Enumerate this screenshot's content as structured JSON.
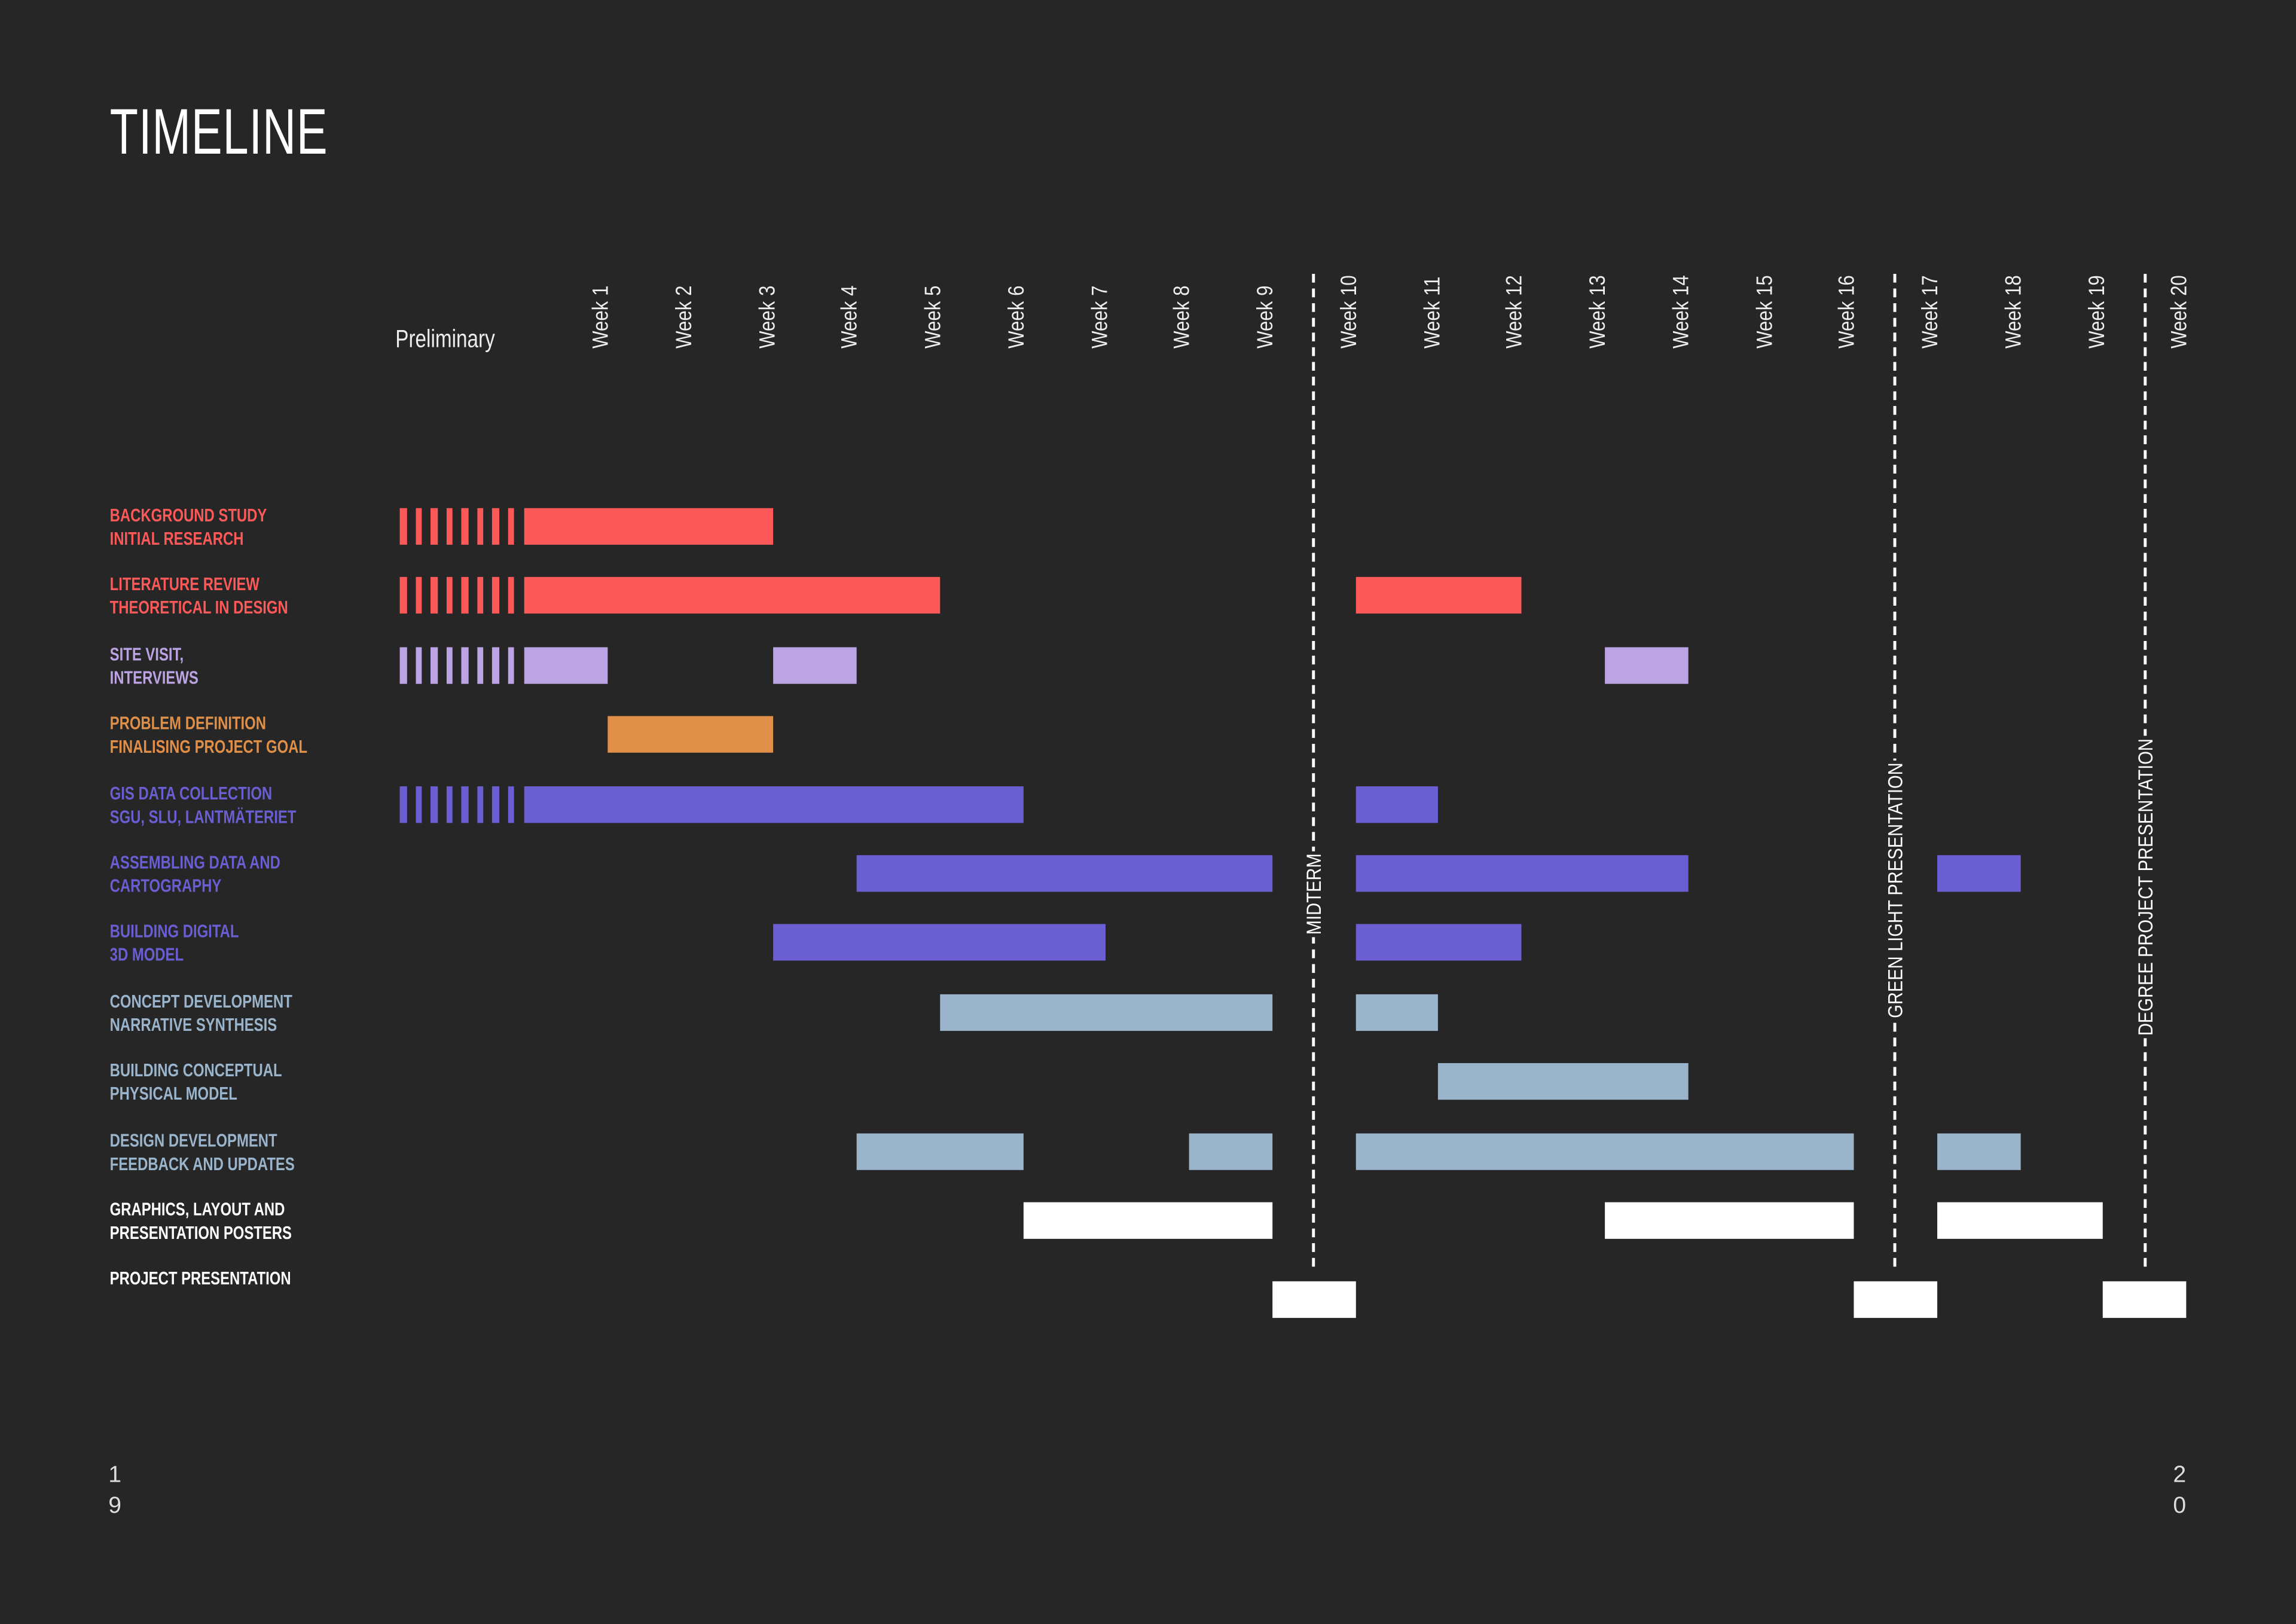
{
  "title": "TIMELINE",
  "preliminary_label": "Preliminary",
  "page_numbers": {
    "left": [
      "1",
      "9"
    ],
    "right": [
      "2",
      "0"
    ]
  },
  "colors": {
    "background": "#262626",
    "red": "#fd5959",
    "lavender": "#bca4e4",
    "orange": "#e08f48",
    "purple": "#6a5ed2",
    "blue": "#9ab4cc",
    "white": "#ffffff"
  },
  "chart_data": {
    "type": "gantt",
    "title": "TIMELINE",
    "x_unit": "week slot (0 = start of Week 1; slot 9-10 = midterm)",
    "weeks": [
      "Week 1",
      "Week 2",
      "Week 3",
      "Week 4",
      "Week 5",
      "Week 6",
      "Week 7",
      "Week 8",
      "Week 9",
      "Week 10",
      "Week 11",
      "Week 12",
      "Week 13",
      "Week 14",
      "Week 15",
      "Week 16",
      "Week 17",
      "Week 18",
      "Week 19",
      "Week 20"
    ],
    "tasks": [
      {
        "lines": [
          "BACKGROUND STUDY",
          "INITIAL RESEARCH"
        ],
        "color": "#fd5959",
        "preliminary": true,
        "segments": [
          [
            0,
            3
          ]
        ]
      },
      {
        "lines": [
          "LITERATURE REVIEW",
          "THEORETICAL IN DESIGN"
        ],
        "color": "#fd5959",
        "preliminary": true,
        "segments": [
          [
            0,
            5
          ],
          [
            10,
            12
          ]
        ]
      },
      {
        "lines": [
          "SITE VISIT,",
          "INTERVIEWS"
        ],
        "color": "#bca4e4",
        "preliminary": true,
        "segments": [
          [
            0,
            1
          ],
          [
            3,
            4
          ],
          [
            13,
            14
          ]
        ]
      },
      {
        "lines": [
          "PROBLEM DEFINITION",
          "FINALISING PROJECT GOAL"
        ],
        "color": "#e08f48",
        "preliminary": false,
        "segments": [
          [
            1,
            3
          ]
        ]
      },
      {
        "lines": [
          "GIS DATA COLLECTION",
          "SGU, SLU, LANTMÄTERIET"
        ],
        "color": "#6a5ed2",
        "preliminary": true,
        "segments": [
          [
            0,
            6
          ],
          [
            10,
            11
          ]
        ]
      },
      {
        "lines": [
          "ASSEMBLING DATA AND",
          "CARTOGRAPHY"
        ],
        "color": "#6a5ed2",
        "preliminary": false,
        "segments": [
          [
            4,
            9
          ],
          [
            10,
            14
          ],
          [
            17,
            18
          ]
        ]
      },
      {
        "lines": [
          "BUILDING DIGITAL",
          "3D MODEL"
        ],
        "color": "#6a5ed2",
        "preliminary": false,
        "segments": [
          [
            3,
            7
          ],
          [
            10,
            12
          ]
        ]
      },
      {
        "lines": [
          "CONCEPT DEVELOPMENT",
          "NARRATIVE SYNTHESIS"
        ],
        "color": "#9ab4cc",
        "preliminary": false,
        "segments": [
          [
            5,
            9
          ],
          [
            10,
            11
          ]
        ]
      },
      {
        "lines": [
          "BUILDING CONCEPTUAL",
          "PHYSICAL MODEL"
        ],
        "color": "#9ab4cc",
        "preliminary": false,
        "segments": [
          [
            11,
            14
          ]
        ]
      },
      {
        "lines": [
          "DESIGN DEVELOPMENT",
          "FEEDBACK AND UPDATES"
        ],
        "color": "#9ab4cc",
        "preliminary": false,
        "segments": [
          [
            4,
            6
          ],
          [
            8,
            9
          ],
          [
            10,
            16
          ],
          [
            17,
            18
          ]
        ]
      },
      {
        "lines": [
          "GRAPHICS, LAYOUT AND",
          "PRESENTATION POSTERS"
        ],
        "color": "#ffffff",
        "preliminary": false,
        "segments": [
          [
            6,
            9
          ],
          [
            13,
            16
          ],
          [
            17,
            19
          ]
        ]
      },
      {
        "lines": [
          "PROJECT PRESENTATION"
        ],
        "color": "#ffffff",
        "preliminary": false,
        "segments": [
          [
            9,
            10
          ],
          [
            16,
            17
          ],
          [
            19,
            20
          ]
        ]
      }
    ],
    "milestones": [
      {
        "label": "MIDTERM",
        "slot": 9.5
      },
      {
        "label": "GREEN LIGHT PRESENTATION",
        "slot": 16.5
      },
      {
        "label": "DEGREE PROJECT PRESENTATION",
        "slot": 19.5
      }
    ]
  }
}
